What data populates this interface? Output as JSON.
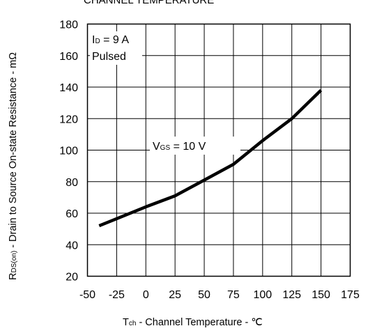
{
  "chart_data": {
    "type": "line",
    "title": "CHANNEL TEMPERATURE",
    "xlabel": {
      "prefix": "T",
      "sub": "ch",
      "text": " - Channel Temperature - ℃"
    },
    "ylabel": {
      "prefix": "R",
      "sub": "DS(on)",
      "text": " - Drain to Source On-state Resistance - mΩ"
    },
    "xlim": [
      -50,
      175
    ],
    "ylim": [
      20,
      180
    ],
    "x_ticks": [
      -50,
      -25,
      0,
      25,
      50,
      75,
      100,
      125,
      150,
      175
    ],
    "y_ticks": [
      20,
      40,
      60,
      80,
      100,
      120,
      140,
      160,
      180
    ],
    "grid": true,
    "series": [
      {
        "label": {
          "prefix": "V",
          "sub": "GS",
          "text": " = 10 V"
        },
        "x": [
          -40,
          -25,
          0,
          25,
          50,
          75,
          100,
          125,
          150
        ],
        "y": [
          52,
          56.5,
          64,
          71,
          81,
          91,
          106,
          120,
          138
        ]
      }
    ],
    "conditions": {
      "id": {
        "prefix": "I",
        "sub": "D",
        "text": " = 9 A"
      },
      "mode": "Pulsed"
    }
  }
}
